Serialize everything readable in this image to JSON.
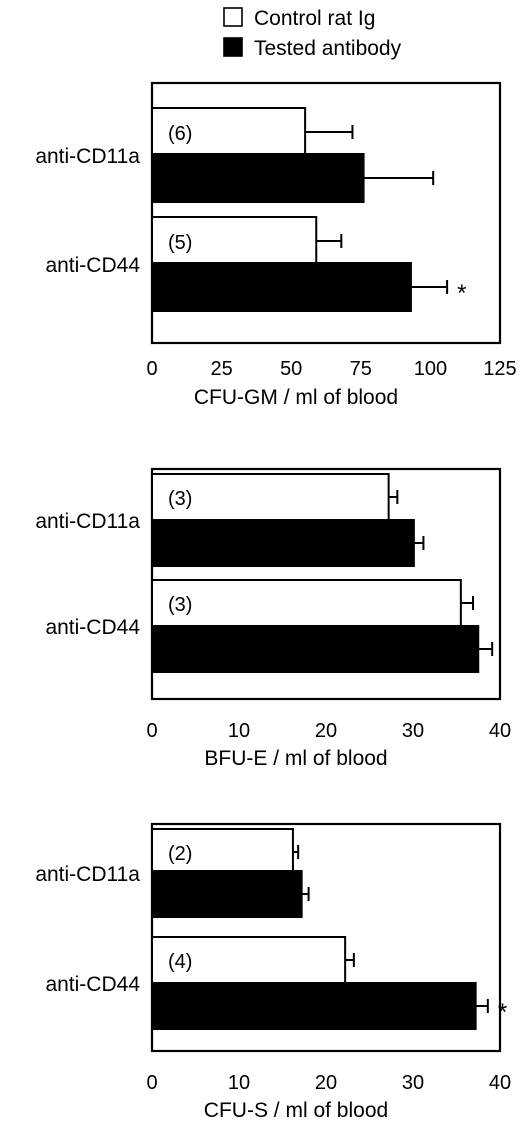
{
  "legend": {
    "position": "top-center",
    "items": [
      {
        "label": "Control rat Ig",
        "color": "#ffffff"
      },
      {
        "label": "Tested antibody",
        "color": "#000000"
      }
    ]
  },
  "chart_data": [
    {
      "type": "bar",
      "orientation": "horizontal",
      "categories": [
        "anti-CD11a",
        "anti-CD44"
      ],
      "group_labels": [
        "(6)",
        "(5)"
      ],
      "series": [
        {
          "name": "Control rat Ig",
          "values": [
            55,
            59
          ],
          "errors": [
            17,
            9
          ]
        },
        {
          "name": "Tested antibody",
          "values": [
            76,
            93
          ],
          "errors": [
            25,
            13
          ]
        }
      ],
      "significance": [
        "",
        "*"
      ],
      "xlabel": "CFU-GM / ml of blood",
      "ticks": [
        "0",
        "25",
        "50",
        "75",
        "100",
        "125"
      ],
      "xlim": [
        0,
        125
      ],
      "grid": false
    },
    {
      "type": "bar",
      "orientation": "horizontal",
      "categories": [
        "anti-CD11a",
        "anti-CD44"
      ],
      "group_labels": [
        "(3)",
        "(3)"
      ],
      "series": [
        {
          "name": "Control rat Ig",
          "values": [
            27.2,
            35.5
          ],
          "errors": [
            1.0,
            1.4
          ]
        },
        {
          "name": "Tested antibody",
          "values": [
            30.1,
            37.5
          ],
          "errors": [
            1.1,
            1.6
          ]
        }
      ],
      "significance": [
        "",
        ""
      ],
      "xlabel": "BFU-E / ml of blood",
      "ticks": [
        "0",
        "10",
        "20",
        "30",
        "40"
      ],
      "xlim": [
        0,
        40
      ],
      "grid": false
    },
    {
      "type": "bar",
      "orientation": "horizontal",
      "categories": [
        "anti-CD11a",
        "anti-CD44"
      ],
      "group_labels": [
        "(2)",
        "(4)"
      ],
      "series": [
        {
          "name": "Control rat Ig",
          "values": [
            16.2,
            22.2
          ],
          "errors": [
            0.6,
            1.0
          ]
        },
        {
          "name": "Tested antibody",
          "values": [
            17.2,
            37.2
          ],
          "errors": [
            0.8,
            1.4
          ]
        }
      ],
      "significance": [
        "",
        "*"
      ],
      "xlabel": "CFU-S / ml of blood",
      "ticks": [
        "0",
        "10",
        "20",
        "30",
        "40"
      ],
      "xlim": [
        0,
        40
      ],
      "grid": false
    }
  ]
}
